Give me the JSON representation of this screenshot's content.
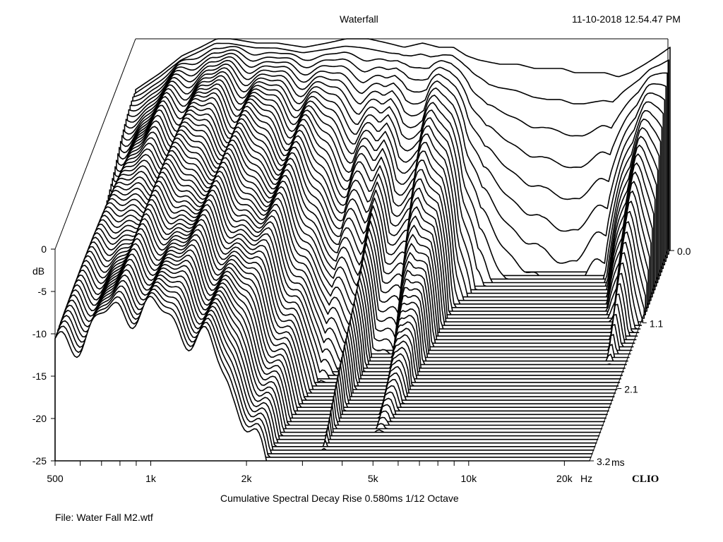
{
  "header": {
    "title": "Waterfall",
    "timestamp": "11-10-2018 12.54.47 PM"
  },
  "footer": {
    "caption": "Cumulative Spectral Decay   Rise 0.580ms   1/12 Octave",
    "file": "File: Water Fall M2.wtf",
    "brand": "CLIO"
  },
  "chart_data": {
    "type": "waterfall",
    "x_axis": {
      "scale": "log",
      "range": [
        500,
        24000
      ],
      "tick_labels": [
        "500",
        "1k",
        "2k",
        "5k",
        "10k",
        "20k"
      ],
      "tick_values": [
        500,
        1000,
        2000,
        5000,
        10000,
        20000
      ],
      "unit": "Hz"
    },
    "y_axis": {
      "label": "dB",
      "range": [
        -25,
        0
      ],
      "tick_labels": [
        "0",
        "-5",
        "-10",
        "-15",
        "-20",
        "-25"
      ],
      "tick_values": [
        0,
        -5,
        -10,
        -15,
        -20,
        -25
      ]
    },
    "z_axis": {
      "tick_labels": [
        "0.0",
        "1.1",
        "2.1",
        "3.2"
      ],
      "tick_values": [
        0.0,
        1.1,
        2.1,
        3.2
      ],
      "unit": "ms",
      "range": [
        0,
        3.2
      ]
    },
    "slice_count": 60,
    "response_profile": {
      "freq": [
        500,
        600,
        700,
        800,
        900,
        1000,
        1200,
        1400,
        1700,
        2000,
        2300,
        2700,
        3100,
        3500,
        4000,
        4500,
        5000,
        5500,
        6000,
        7000,
        8000,
        9000,
        10000,
        11000,
        12000,
        13500,
        15000,
        16500,
        18000,
        20000,
        22000,
        24000
      ],
      "db": [
        -6,
        -4,
        -2,
        -1,
        0,
        0,
        -0.5,
        -0.5,
        -1,
        -0.5,
        0,
        0,
        -0.5,
        -1,
        -0.5,
        -1,
        -1,
        -2,
        -2.5,
        -3,
        -3,
        -3.5,
        -3.5,
        -3.5,
        -4,
        -4,
        -4,
        -4.5,
        -4,
        -3,
        -2,
        -1
      ]
    },
    "decay_profile_ms": {
      "freq": [
        500,
        650,
        800,
        1000,
        1200,
        1500,
        1800,
        2200,
        2700,
        3200,
        3400,
        3700,
        4300,
        4700,
        5300,
        5800,
        6500,
        8000,
        10000,
        13000,
        16000,
        18000,
        19500,
        21000,
        22500,
        24000
      ],
      "ms": [
        3.2,
        3.1,
        3.0,
        2.7,
        2.3,
        1.8,
        1.2,
        0.8,
        0.45,
        0.5,
        0.7,
        0.4,
        0.35,
        0.7,
        0.55,
        0.25,
        0.15,
        0.12,
        0.1,
        0.1,
        0.12,
        0.25,
        0.3,
        0.5,
        0.35,
        0.3
      ]
    }
  }
}
